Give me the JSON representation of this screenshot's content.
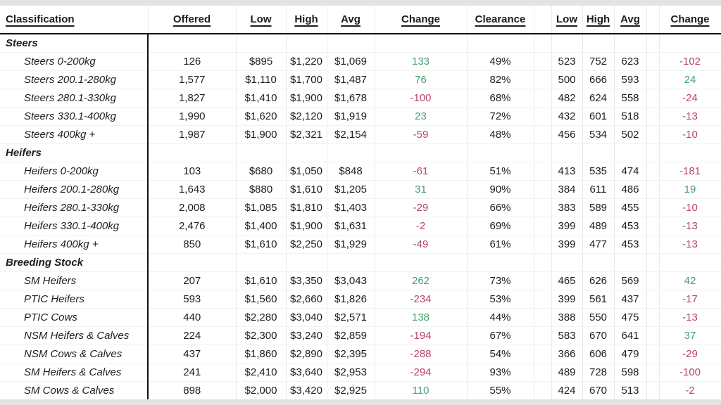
{
  "colors": {
    "positive_change": "#46a071",
    "negative_change": "#b8436a",
    "text": "#1d1d1d",
    "divider": "#121212",
    "strip_background": "#e3e3e3"
  },
  "header": {
    "classification": "Classification",
    "offered": "Offered",
    "low": "Low",
    "high": "High",
    "avg": "Avg",
    "change": "Change",
    "clearance": "Clearance",
    "low2": "Low",
    "high2": "High",
    "avg2": "Avg",
    "change2": "Change"
  },
  "chart_data": {
    "type": "table",
    "columns": [
      "Classification",
      "Offered",
      "Low",
      "High",
      "Avg",
      "Change",
      "Clearance",
      "Low",
      "High",
      "Avg",
      "Change"
    ],
    "sections": [
      {
        "name": "Steers",
        "rows": [
          {
            "label": "Steers 0-200kg",
            "offered": "126",
            "low": "$895",
            "high": "$1,220",
            "avg": "$1,069",
            "change": "133",
            "clearance": "49%",
            "low2": "523",
            "high2": "752",
            "avg2": "623",
            "change2": "-102"
          },
          {
            "label": "Steers 200.1-280kg",
            "offered": "1,577",
            "low": "$1,110",
            "high": "$1,700",
            "avg": "$1,487",
            "change": "76",
            "clearance": "82%",
            "low2": "500",
            "high2": "666",
            "avg2": "593",
            "change2": "24"
          },
          {
            "label": "Steers 280.1-330kg",
            "offered": "1,827",
            "low": "$1,410",
            "high": "$1,900",
            "avg": "$1,678",
            "change": "-100",
            "clearance": "68%",
            "low2": "482",
            "high2": "624",
            "avg2": "558",
            "change2": "-24"
          },
          {
            "label": "Steers 330.1-400kg",
            "offered": "1,990",
            "low": "$1,620",
            "high": "$2,120",
            "avg": "$1,919",
            "change": "23",
            "clearance": "72%",
            "low2": "432",
            "high2": "601",
            "avg2": "518",
            "change2": "-13"
          },
          {
            "label": "Steers 400kg +",
            "offered": "1,987",
            "low": "$1,900",
            "high": "$2,321",
            "avg": "$2,154",
            "change": "-59",
            "clearance": "48%",
            "low2": "456",
            "high2": "534",
            "avg2": "502",
            "change2": "-10"
          }
        ]
      },
      {
        "name": "Heifers",
        "rows": [
          {
            "label": "Heifers 0-200kg",
            "offered": "103",
            "low": "$680",
            "high": "$1,050",
            "avg": "$848",
            "change": "-61",
            "clearance": "51%",
            "low2": "413",
            "high2": "535",
            "avg2": "474",
            "change2": "-181"
          },
          {
            "label": "Heifers 200.1-280kg",
            "offered": "1,643",
            "low": "$880",
            "high": "$1,610",
            "avg": "$1,205",
            "change": "31",
            "clearance": "90%",
            "low2": "384",
            "high2": "611",
            "avg2": "486",
            "change2": "19"
          },
          {
            "label": "Heifers 280.1-330kg",
            "offered": "2,008",
            "low": "$1,085",
            "high": "$1,810",
            "avg": "$1,403",
            "change": "-29",
            "clearance": "66%",
            "low2": "383",
            "high2": "589",
            "avg2": "455",
            "change2": "-10"
          },
          {
            "label": "Heifers 330.1-400kg",
            "offered": "2,476",
            "low": "$1,400",
            "high": "$1,900",
            "avg": "$1,631",
            "change": "-2",
            "clearance": "69%",
            "low2": "399",
            "high2": "489",
            "avg2": "453",
            "change2": "-13"
          },
          {
            "label": "Heifers 400kg +",
            "offered": "850",
            "low": "$1,610",
            "high": "$2,250",
            "avg": "$1,929",
            "change": "-49",
            "clearance": "61%",
            "low2": "399",
            "high2": "477",
            "avg2": "453",
            "change2": "-13"
          }
        ]
      },
      {
        "name": "Breeding Stock",
        "rows": [
          {
            "label": "SM Heifers",
            "offered": "207",
            "low": "$1,610",
            "high": "$3,350",
            "avg": "$3,043",
            "change": "262",
            "clearance": "73%",
            "low2": "465",
            "high2": "626",
            "avg2": "569",
            "change2": "42"
          },
          {
            "label": "PTIC Heifers",
            "offered": "593",
            "low": "$1,560",
            "high": "$2,660",
            "avg": "$1,826",
            "change": "-234",
            "clearance": "53%",
            "low2": "399",
            "high2": "561",
            "avg2": "437",
            "change2": "-17"
          },
          {
            "label": "PTIC Cows",
            "offered": "440",
            "low": "$2,280",
            "high": "$3,040",
            "avg": "$2,571",
            "change": "138",
            "clearance": "44%",
            "low2": "388",
            "high2": "550",
            "avg2": "475",
            "change2": "-13"
          },
          {
            "label": "NSM Heifers & Calves",
            "offered": "224",
            "low": "$2,300",
            "high": "$3,240",
            "avg": "$2,859",
            "change": "-194",
            "clearance": "67%",
            "low2": "583",
            "high2": "670",
            "avg2": "641",
            "change2": "37"
          },
          {
            "label": "NSM Cows & Calves",
            "offered": "437",
            "low": "$1,860",
            "high": "$2,890",
            "avg": "$2,395",
            "change": "-288",
            "clearance": "54%",
            "low2": "366",
            "high2": "606",
            "avg2": "479",
            "change2": "-29"
          },
          {
            "label": "SM Heifers & Calves",
            "offered": "241",
            "low": "$2,410",
            "high": "$3,640",
            "avg": "$2,953",
            "change": "-294",
            "clearance": "93%",
            "low2": "489",
            "high2": "728",
            "avg2": "598",
            "change2": "-100"
          },
          {
            "label": "SM Cows & Calves",
            "offered": "898",
            "low": "$2,000",
            "high": "$3,420",
            "avg": "$2,925",
            "change": "110",
            "clearance": "55%",
            "low2": "424",
            "high2": "670",
            "avg2": "513",
            "change2": "-2"
          }
        ]
      }
    ]
  }
}
